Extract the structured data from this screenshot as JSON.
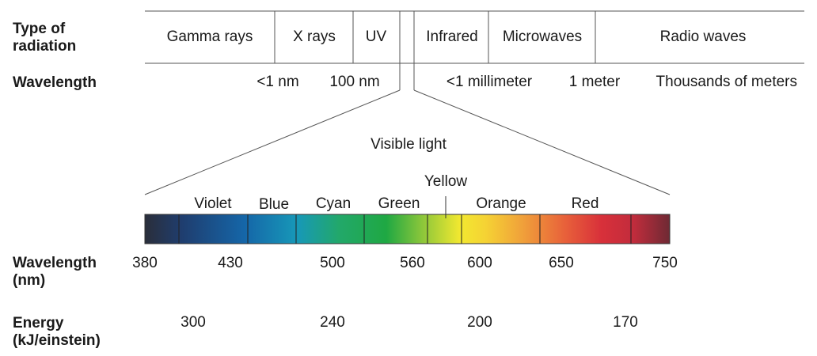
{
  "row_labels": {
    "type_of_radiation": [
      "Type of",
      "radiation"
    ],
    "wavelength": "Wavelength",
    "wavelength_nm": [
      "Wavelength",
      "(nm)"
    ],
    "energy": [
      "Energy",
      "(kJ/einstein)"
    ]
  },
  "radiation_types": [
    "Gamma rays",
    "X rays",
    "UV",
    "Infrared",
    "Microwaves",
    "Radio waves"
  ],
  "wavelength_labels": {
    "lt1nm": "<1 nm",
    "nm100": "100 nm",
    "lt1mm": "<1 millimeter",
    "m1": "1 meter",
    "thousands": "Thousands of meters"
  },
  "visible_light_label": "Visible light",
  "color_bands": [
    {
      "name": "Violet",
      "start_nm": 400,
      "end_nm": 450
    },
    {
      "name": "Blue",
      "start_nm": 450,
      "end_nm": 490
    },
    {
      "name": "Cyan",
      "start_nm": 490,
      "end_nm": 520
    },
    {
      "name": "Green",
      "start_nm": 520,
      "end_nm": 565
    },
    {
      "name": "Yellow",
      "start_nm": 565,
      "end_nm": 590
    },
    {
      "name": "Orange",
      "start_nm": 590,
      "end_nm": 625
    },
    {
      "name": "Red",
      "start_nm": 625,
      "end_nm": 740
    }
  ],
  "wavelength_ticks_nm": [
    "380",
    "430",
    "500",
    "560",
    "600",
    "650",
    "750"
  ],
  "energy_ticks_kj": [
    "300",
    "240",
    "200",
    "170"
  ],
  "colors": {
    "line": "#555555",
    "spectrum": [
      "#2a2e3a",
      "#1f3d6e",
      "#1566a8",
      "#1798b8",
      "#22a86a",
      "#1fa843",
      "#8ec73a",
      "#f2e830",
      "#f5d234",
      "#f0a03a",
      "#e8613a",
      "#d8303a",
      "#c22c3c",
      "#6e2a34"
    ]
  }
}
